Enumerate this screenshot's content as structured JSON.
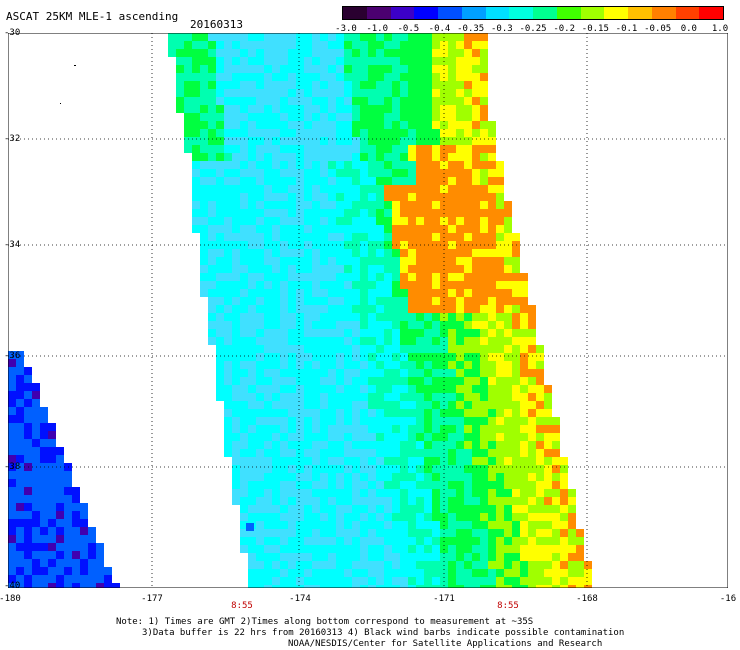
{
  "header": {
    "title": "ASCAT 25KM MLE-1 ascending",
    "date": "20160313"
  },
  "colorbar": {
    "labels": [
      "-3.0",
      "-1.0",
      "-0.5",
      "-0.4",
      "-0.35",
      "-0.3",
      "-0.25",
      "-0.2",
      "-0.15",
      "-0.1",
      "-0.05",
      "0.0",
      "1.0"
    ],
    "colors": [
      "#2a0030",
      "#4b0070",
      "#3c00c8",
      "#0000ff",
      "#0050ff",
      "#00a0ff",
      "#00e0ff",
      "#00ffe0",
      "#00ff90",
      "#40ff00",
      "#a0ff00",
      "#ffff00",
      "#ffc000",
      "#ff8000",
      "#ff4000",
      "#ff0000"
    ]
  },
  "axes": {
    "lat_labels": [
      "-30",
      "-32",
      "-34",
      "-36",
      "-38",
      "-40"
    ],
    "lon_labels": [
      "-180",
      "-177",
      "-174",
      "-171",
      "-168",
      "-16"
    ],
    "time_labels": [
      "8:55",
      "8:55"
    ]
  },
  "palette": {
    "cyan": "#00ffff",
    "light_blue": "#40e0ff",
    "aqua_green": "#00ffb0",
    "green": "#00ff40",
    "lime": "#a0ff00",
    "yellow": "#ffff00",
    "orange": "#ff8c00",
    "blue": "#0060ff",
    "deep_blue": "#0010ff",
    "purple": "#4000b0"
  },
  "notes": {
    "line1": "Note: 1) Times are GMT 2)Times along bottom correspond to measurement at ~35S",
    "line2": "3)Data buffer is 22 hrs from 20160313 4) Black wind barbs indicate possible contamination",
    "line3": "NOAA/NESDIS/Center for Satellite Applications and Research"
  }
}
